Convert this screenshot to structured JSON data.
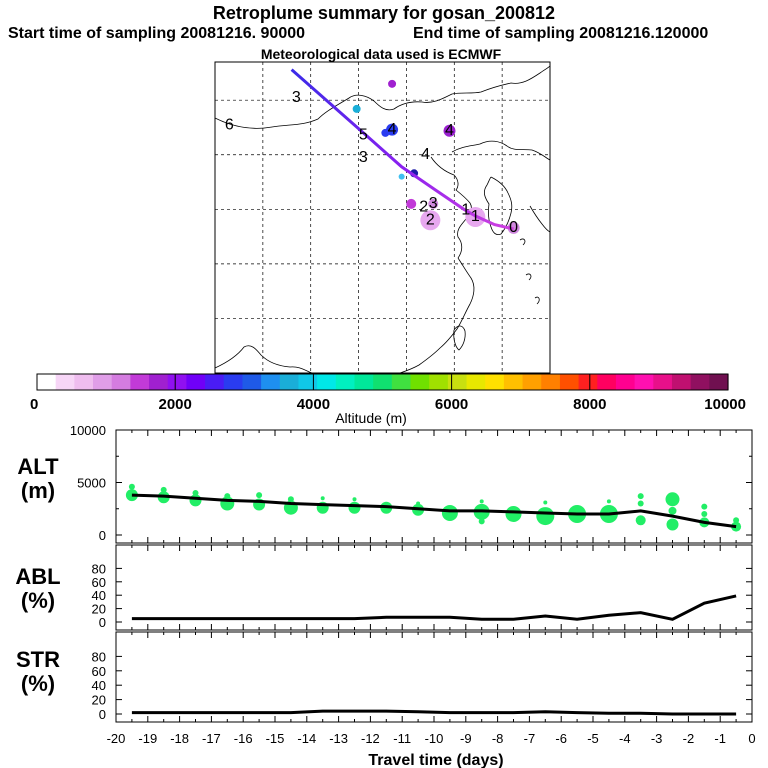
{
  "header": {
    "title": "Retroplume summary for gosan_200812",
    "start_time": "Start time of sampling 20081216. 90000",
    "end_time": "End time of sampling 20081216.120000",
    "met_data": "Meteorological data used is ECMWF"
  },
  "map": {
    "labels": [
      {
        "text": "0",
        "lon": 126.2,
        "lat": 33.3
      },
      {
        "text": "1",
        "lon": 122.2,
        "lat": 34.3
      },
      {
        "text": "1",
        "lon": 121.2,
        "lat": 34.9
      },
      {
        "text": "2",
        "lon": 117.5,
        "lat": 34.0
      },
      {
        "text": "2",
        "lon": 116.8,
        "lat": 35.2
      },
      {
        "text": "3",
        "lon": 117.8,
        "lat": 35.5
      },
      {
        "text": "3",
        "lon": 110.5,
        "lat": 39.7
      },
      {
        "text": "3",
        "lon": 103.5,
        "lat": 45.2
      },
      {
        "text": "4",
        "lon": 117.0,
        "lat": 40.0
      },
      {
        "text": "4",
        "lon": 113.5,
        "lat": 42.3
      },
      {
        "text": "4",
        "lon": 119.5,
        "lat": 42.2
      },
      {
        "text": "5",
        "lon": 110.5,
        "lat": 41.8
      },
      {
        "text": "6",
        "lon": 96.5,
        "lat": 42.7
      }
    ],
    "blobs": [
      {
        "lon": 117.5,
        "lat": 34.0,
        "r": 10,
        "color": "#e7a8ef"
      },
      {
        "lon": 122.2,
        "lat": 34.3,
        "r": 10,
        "color": "#e7a8ef"
      },
      {
        "lon": 126.2,
        "lat": 33.3,
        "r": 6,
        "color": "#d089df"
      },
      {
        "lon": 115.5,
        "lat": 35.5,
        "r": 5,
        "color": "#c23ad8"
      },
      {
        "lon": 117.8,
        "lat": 35.5,
        "r": 5,
        "color": "#d089df"
      },
      {
        "lon": 119.5,
        "lat": 42.2,
        "r": 6,
        "color": "#9a20d0"
      },
      {
        "lon": 113.5,
        "lat": 42.3,
        "r": 6,
        "color": "#2a3cf0"
      },
      {
        "lon": 112.8,
        "lat": 42.0,
        "r": 4,
        "color": "#2a3cf0"
      },
      {
        "lon": 115.8,
        "lat": 38.3,
        "r": 4,
        "color": "#1a1aa8"
      },
      {
        "lon": 114.5,
        "lat": 38.0,
        "r": 3,
        "color": "#3fc0f0"
      },
      {
        "lon": 109.8,
        "lat": 44.2,
        "r": 4,
        "color": "#1aaed8"
      },
      {
        "lon": 113.5,
        "lat": 46.5,
        "r": 4,
        "color": "#a020d0"
      }
    ],
    "path_lon": [
      103.0,
      110.5,
      114.5,
      118.0,
      121.0,
      122.2,
      124.2,
      126.2
    ],
    "path_lat": [
      47.8,
      42.0,
      38.9,
      36.8,
      35.0,
      34.4,
      33.6,
      33.2
    ]
  },
  "colorbar": {
    "tick_labels": [
      "0",
      "2000",
      "4000",
      "6000",
      "8000",
      "10000"
    ],
    "xlabel": "Altitude  (m)",
    "colors": [
      "#ffffff",
      "#f7d6f7",
      "#efbdef",
      "#e09ee8",
      "#d47ce0",
      "#c23ad8",
      "#a020d0",
      "#9010f0",
      "#7000f8",
      "#4a1cf5",
      "#2a3cf0",
      "#1f5ae8",
      "#1e8ff0",
      "#1aaed8",
      "#10c8e8",
      "#00e8e8",
      "#00f0c0",
      "#00e89a",
      "#10e070",
      "#40e040",
      "#70e000",
      "#a0e000",
      "#c8e010",
      "#e8e800",
      "#ffe000",
      "#ffc000",
      "#ffa000",
      "#ff8000",
      "#ff5000",
      "#ff2020",
      "#ff0060",
      "#ff0090",
      "#ff10b0",
      "#e8108a",
      "#c01070",
      "#901060",
      "#701050"
    ],
    "range": [
      0,
      10000
    ]
  },
  "chart_data": [
    {
      "type": "line",
      "panel": "ALT",
      "ylabel": "ALT\n(m)",
      "ylabel_lines": [
        "ALT",
        "(m)"
      ],
      "ylim": [
        0,
        10000
      ],
      "yticks": [
        "10000",
        "5000",
        "0"
      ],
      "x": [
        -19.5,
        -18.5,
        -17.5,
        -16.5,
        -15.5,
        -14.5,
        -13.5,
        -12.5,
        -11.5,
        -10.5,
        -9.5,
        -8.5,
        -7.5,
        -6.5,
        -5.5,
        -4.5,
        -3.5,
        -2.5,
        -1.5,
        -0.5
      ],
      "values": [
        3800,
        3700,
        3500,
        3300,
        3200,
        3000,
        2900,
        2800,
        2700,
        2500,
        2300,
        2300,
        2200,
        2100,
        2000,
        2000,
        2300,
        1800,
        1200,
        800
      ],
      "scatter": [
        {
          "x": -19.5,
          "y": 3800,
          "r": 6
        },
        {
          "x": -19.5,
          "y": 4600,
          "r": 3
        },
        {
          "x": -18.5,
          "y": 3600,
          "r": 6
        },
        {
          "x": -18.5,
          "y": 4300,
          "r": 3
        },
        {
          "x": -17.5,
          "y": 3300,
          "r": 6
        },
        {
          "x": -17.5,
          "y": 4000,
          "r": 3
        },
        {
          "x": -16.5,
          "y": 3000,
          "r": 7
        },
        {
          "x": -16.5,
          "y": 3700,
          "r": 3
        },
        {
          "x": -15.5,
          "y": 2900,
          "r": 6
        },
        {
          "x": -15.5,
          "y": 3800,
          "r": 3
        },
        {
          "x": -14.5,
          "y": 2600,
          "r": 7
        },
        {
          "x": -14.5,
          "y": 3400,
          "r": 3
        },
        {
          "x": -13.5,
          "y": 2600,
          "r": 6
        },
        {
          "x": -13.5,
          "y": 3500,
          "r": 2
        },
        {
          "x": -12.5,
          "y": 2600,
          "r": 6
        },
        {
          "x": -12.5,
          "y": 3400,
          "r": 2
        },
        {
          "x": -11.5,
          "y": 2600,
          "r": 6
        },
        {
          "x": -10.5,
          "y": 2400,
          "r": 6
        },
        {
          "x": -10.5,
          "y": 3000,
          "r": 2
        },
        {
          "x": -9.5,
          "y": 2100,
          "r": 8
        },
        {
          "x": -8.5,
          "y": 2200,
          "r": 8
        },
        {
          "x": -8.5,
          "y": 3200,
          "r": 2
        },
        {
          "x": -8.5,
          "y": 1300,
          "r": 3
        },
        {
          "x": -7.5,
          "y": 2000,
          "r": 8
        },
        {
          "x": -6.5,
          "y": 1800,
          "r": 9
        },
        {
          "x": -6.5,
          "y": 3100,
          "r": 2
        },
        {
          "x": -5.5,
          "y": 2000,
          "r": 9
        },
        {
          "x": -4.5,
          "y": 2000,
          "r": 9
        },
        {
          "x": -4.5,
          "y": 3200,
          "r": 2
        },
        {
          "x": -3.5,
          "y": 1400,
          "r": 5
        },
        {
          "x": -3.5,
          "y": 3000,
          "r": 3
        },
        {
          "x": -3.5,
          "y": 3700,
          "r": 3
        },
        {
          "x": -2.5,
          "y": 3400,
          "r": 7
        },
        {
          "x": -2.5,
          "y": 1000,
          "r": 6
        },
        {
          "x": -2.5,
          "y": 2300,
          "r": 4
        },
        {
          "x": -1.5,
          "y": 2700,
          "r": 3
        },
        {
          "x": -1.5,
          "y": 2000,
          "r": 3
        },
        {
          "x": -1.5,
          "y": 1200,
          "r": 5
        },
        {
          "x": -0.5,
          "y": 800,
          "r": 5
        },
        {
          "x": -0.5,
          "y": 1400,
          "r": 3
        }
      ]
    },
    {
      "type": "line",
      "panel": "ABL",
      "ylabel_lines": [
        "ABL",
        "(%)"
      ],
      "ylim": [
        0,
        100
      ],
      "yticks": [
        "80",
        "60",
        "40",
        "20",
        "0"
      ],
      "x": [
        -19.5,
        -18.5,
        -17.5,
        -16.5,
        -15.5,
        -14.5,
        -13.5,
        -12.5,
        -11.5,
        -10.5,
        -9.5,
        -8.5,
        -7.5,
        -6.5,
        -5.5,
        -4.5,
        -3.5,
        -2.5,
        -1.5,
        -0.5
      ],
      "values": [
        5,
        5,
        5,
        5,
        5,
        5,
        5,
        5,
        7,
        7,
        7,
        4,
        4,
        9,
        4,
        10,
        14,
        4,
        28,
        39
      ]
    },
    {
      "type": "line",
      "panel": "STR",
      "ylabel_lines": [
        "STR",
        "(%)"
      ],
      "ylim": [
        0,
        100
      ],
      "yticks": [
        "80",
        "60",
        "40",
        "20",
        "0"
      ],
      "x": [
        -19.5,
        -18.5,
        -17.5,
        -16.5,
        -15.5,
        -14.5,
        -13.5,
        -12.5,
        -11.5,
        -10.5,
        -9.5,
        -8.5,
        -7.5,
        -6.5,
        -5.5,
        -4.5,
        -3.5,
        -2.5,
        -1.5,
        -0.5
      ],
      "values": [
        2,
        2,
        2,
        2,
        2,
        2,
        4,
        4,
        4,
        3,
        2,
        2,
        2,
        3,
        2,
        1,
        1,
        0,
        0,
        0
      ]
    }
  ],
  "x_axis": {
    "xlabel": "Travel time (days)",
    "ticks": [
      "-20",
      "-19",
      "-18",
      "-17",
      "-16",
      "-15",
      "-14",
      "-13",
      "-12",
      "-11",
      "-10",
      "-9",
      "-8",
      "-7",
      "-6",
      "-5",
      "-4",
      "-3",
      "-2",
      "-1",
      "0"
    ]
  }
}
